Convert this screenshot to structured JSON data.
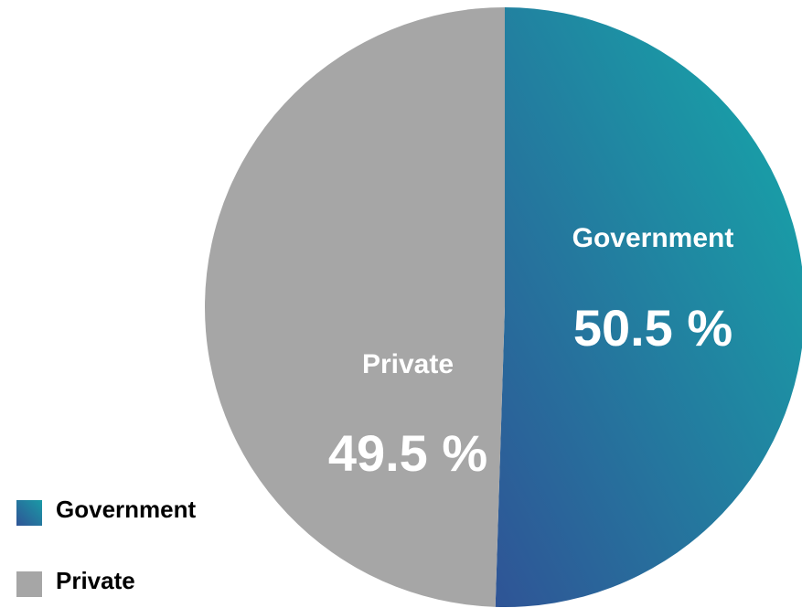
{
  "chart_data": {
    "type": "pie",
    "title": "",
    "slices": [
      {
        "label": "Government",
        "value": 50.5,
        "display": "50.5 %",
        "color": "#1a9aa6",
        "color_end": "#2f5496"
      },
      {
        "label": "Private",
        "value": 49.5,
        "display": "49.5 %",
        "color": "#a6a6a6"
      }
    ],
    "legend": {
      "placement": "bottom-left",
      "items": [
        "Government",
        "Private"
      ]
    }
  }
}
